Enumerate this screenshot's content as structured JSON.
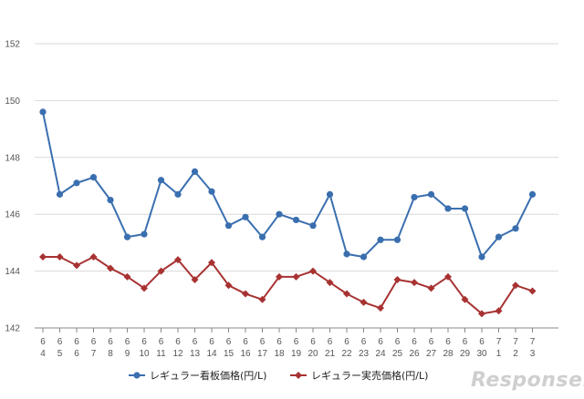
{
  "chart_data": {
    "type": "line",
    "categories": [
      [
        "6",
        "4"
      ],
      [
        "6",
        "5"
      ],
      [
        "6",
        "6"
      ],
      [
        "6",
        "7"
      ],
      [
        "6",
        "8"
      ],
      [
        "6",
        "9"
      ],
      [
        "6",
        "10"
      ],
      [
        "6",
        "11"
      ],
      [
        "6",
        "12"
      ],
      [
        "6",
        "13"
      ],
      [
        "6",
        "14"
      ],
      [
        "6",
        "15"
      ],
      [
        "6",
        "16"
      ],
      [
        "6",
        "17"
      ],
      [
        "6",
        "18"
      ],
      [
        "6",
        "19"
      ],
      [
        "6",
        "20"
      ],
      [
        "6",
        "21"
      ],
      [
        "6",
        "22"
      ],
      [
        "6",
        "23"
      ],
      [
        "6",
        "24"
      ],
      [
        "6",
        "25"
      ],
      [
        "6",
        "26"
      ],
      [
        "6",
        "27"
      ],
      [
        "6",
        "28"
      ],
      [
        "6",
        "29"
      ],
      [
        "6",
        "30"
      ],
      [
        "7",
        "1"
      ],
      [
        "7",
        "2"
      ],
      [
        "7",
        "3"
      ]
    ],
    "series": [
      {
        "name": "レギュラー看板価格(円/L)",
        "color": "#3a6faf",
        "marker": "circle",
        "values": [
          149.6,
          146.7,
          147.1,
          147.3,
          146.5,
          145.2,
          145.3,
          147.2,
          146.7,
          147.5,
          146.8,
          145.6,
          145.9,
          145.2,
          146.0,
          145.8,
          145.6,
          146.7,
          144.6,
          144.5,
          145.1,
          145.1,
          146.6,
          146.7,
          146.2,
          146.2,
          144.5,
          145.2,
          145.5,
          146.7
        ]
      },
      {
        "name": "レギュラー実売価格(円/L)",
        "color": "#a83232",
        "marker": "diamond",
        "values": [
          144.5,
          144.5,
          144.2,
          144.5,
          144.1,
          143.8,
          143.4,
          144.0,
          144.4,
          143.7,
          144.3,
          143.5,
          143.2,
          143.0,
          143.8,
          143.8,
          144.0,
          143.6,
          143.2,
          142.9,
          142.7,
          143.7,
          143.6,
          143.4,
          143.8,
          143.0,
          142.5,
          142.6,
          143.5,
          143.3
        ]
      }
    ],
    "yticks": [
      142,
      144,
      146,
      148,
      150,
      152
    ],
    "ylim": [
      142,
      152
    ],
    "grid": true,
    "legend": "bottom",
    "title": "",
    "xlabel": "",
    "ylabel": ""
  },
  "watermark": {
    "text": "Response."
  }
}
